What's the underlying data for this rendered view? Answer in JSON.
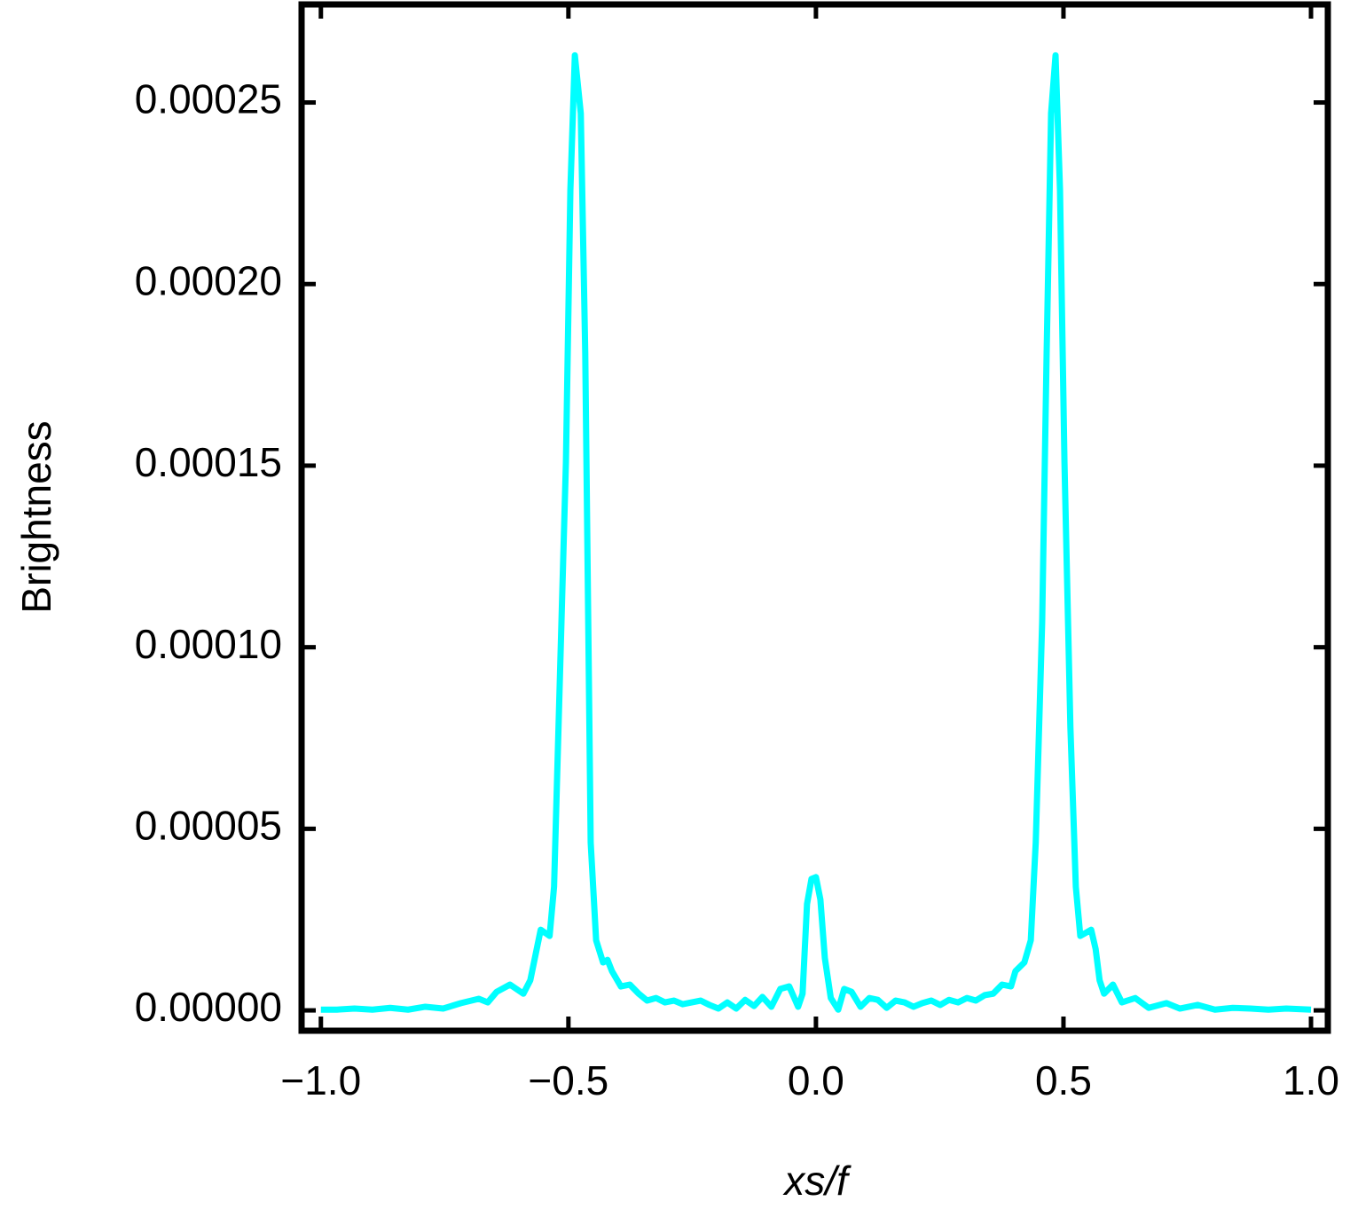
{
  "chart_data": {
    "type": "line",
    "xlabel": "xs/f",
    "ylabel": "Brightness",
    "xlim": [
      -1.039,
      1.034
    ],
    "ylim": [
      -5.6e-06,
      0.000277
    ],
    "xticks": [
      {
        "value": -1.0,
        "label": "−1.0"
      },
      {
        "value": -0.5,
        "label": "−0.5"
      },
      {
        "value": 0.0,
        "label": "0.0"
      },
      {
        "value": 0.5,
        "label": "0.5"
      },
      {
        "value": 1.0,
        "label": "1.0"
      }
    ],
    "yticks": [
      {
        "value": 0,
        "label": "0.00000"
      },
      {
        "value": 5e-05,
        "label": "0.00005"
      },
      {
        "value": 0.0001,
        "label": "0.00010"
      },
      {
        "value": 0.00015,
        "label": "0.00015"
      },
      {
        "value": 0.0002,
        "label": "0.00020"
      },
      {
        "value": 0.00025,
        "label": "0.00025"
      }
    ],
    "series": [
      {
        "color": "#00ffff",
        "x": [
          -1.0,
          -0.968,
          -0.932,
          -0.896,
          -0.86,
          -0.824,
          -0.789,
          -0.753,
          -0.717,
          -0.681,
          -0.663,
          -0.645,
          -0.618,
          -0.591,
          -0.577,
          -0.564,
          -0.556,
          -0.538,
          -0.529,
          -0.52,
          -0.505,
          -0.496,
          -0.487,
          -0.475,
          -0.466,
          -0.455,
          -0.444,
          -0.43,
          -0.421,
          -0.412,
          -0.394,
          -0.376,
          -0.358,
          -0.341,
          -0.323,
          -0.305,
          -0.287,
          -0.269,
          -0.251,
          -0.233,
          -0.215,
          -0.197,
          -0.179,
          -0.161,
          -0.143,
          -0.125,
          -0.108,
          -0.09,
          -0.072,
          -0.054,
          -0.036,
          -0.027,
          -0.018,
          -0.009,
          0.0,
          0.009,
          0.018,
          0.03,
          0.045,
          0.057,
          0.072,
          0.09,
          0.108,
          0.125,
          0.143,
          0.161,
          0.179,
          0.197,
          0.215,
          0.233,
          0.251,
          0.269,
          0.287,
          0.305,
          0.323,
          0.341,
          0.358,
          0.376,
          0.394,
          0.403,
          0.421,
          0.434,
          0.444,
          0.457,
          0.466,
          0.475,
          0.484,
          0.493,
          0.502,
          0.514,
          0.525,
          0.534,
          0.556,
          0.565,
          0.573,
          0.582,
          0.6,
          0.618,
          0.645,
          0.672,
          0.708,
          0.735,
          0.771,
          0.806,
          0.842,
          0.878,
          0.914,
          0.95,
          1.0
        ],
        "values": [
          2e-07,
          2e-07,
          5e-07,
          2e-07,
          7e-07,
          2e-07,
          1e-06,
          5e-07,
          2e-06,
          3.2e-06,
          2.2e-06,
          5.1e-06,
          7.1e-06,
          4.6e-06,
          8.3e-06,
          1.69e-05,
          2.22e-05,
          2.05e-05,
          3.4e-05,
          7.8e-05,
          0.000151,
          0.000226,
          0.000263,
          0.000247,
          0.000181,
          4.62e-05,
          1.93e-05,
          1.32e-05,
          1.39e-05,
          1.08e-05,
          6.6e-06,
          7.1e-06,
          4.6e-06,
          2.7e-06,
          3.4e-06,
          2.2e-06,
          2.7e-06,
          1.7e-06,
          2.2e-06,
          2.7e-06,
          1.5e-06,
          5e-07,
          2.2e-06,
          5e-07,
          2.9e-06,
          1.2e-06,
          3.7e-06,
          1e-06,
          5.9e-06,
          6.6e-06,
          1e-06,
          4.6e-06,
          2.93e-05,
          3.62e-05,
          3.67e-05,
          3.05e-05,
          1.44e-05,
          3.4e-06,
          2e-07,
          5.9e-06,
          5.1e-06,
          1e-06,
          3.4e-06,
          2.9e-06,
          7e-07,
          2.7e-06,
          2.2e-06,
          1e-06,
          2e-06,
          2.7e-06,
          1.5e-06,
          2.9e-06,
          2.2e-06,
          3.4e-06,
          2.7e-06,
          4.2e-06,
          4.6e-06,
          7.1e-06,
          6.6e-06,
          1.08e-05,
          1.32e-05,
          1.93e-05,
          4.62e-05,
          0.000107,
          0.000181,
          0.000247,
          0.000263,
          0.000226,
          0.000151,
          7.8e-05,
          3.4e-05,
          2.05e-05,
          2.22e-05,
          1.69e-05,
          8.3e-06,
          4.6e-06,
          7.1e-06,
          2.2e-06,
          3.4e-06,
          7e-07,
          2e-06,
          5e-07,
          1.5e-06,
          2e-07,
          7e-07,
          5e-07,
          2e-07,
          5e-07,
          2e-07
        ]
      }
    ]
  }
}
